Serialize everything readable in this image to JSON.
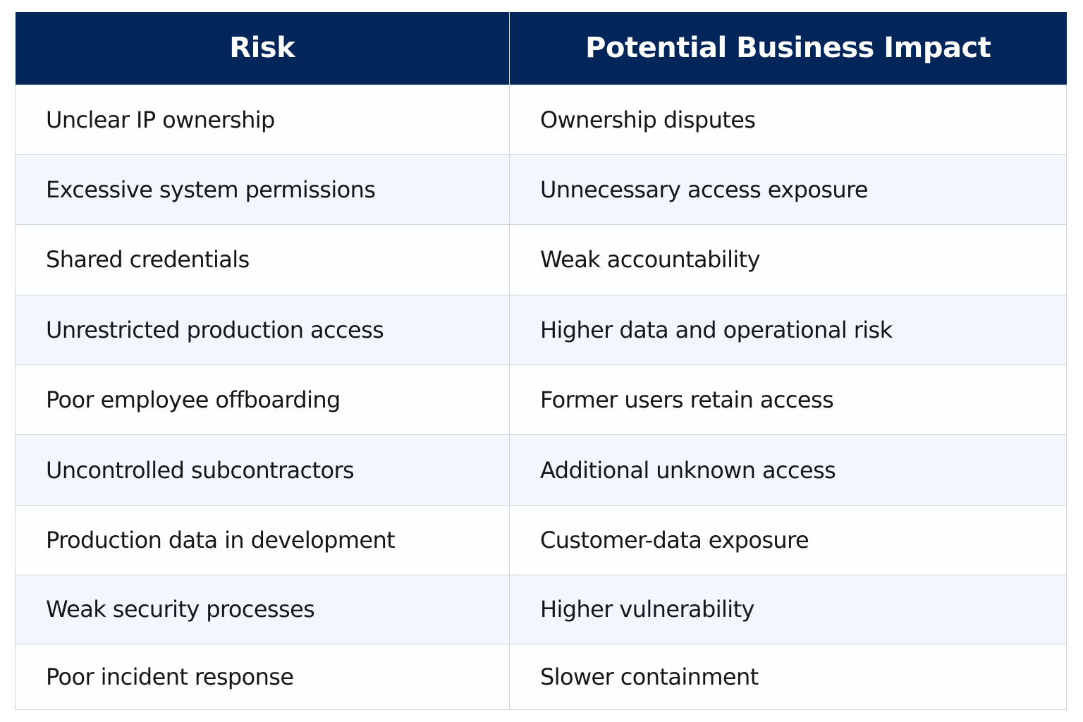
{
  "table": {
    "headers": [
      "Risk",
      "Potential Business Impact"
    ],
    "rows": [
      [
        "Unclear IP ownership",
        "Ownership disputes"
      ],
      [
        "Excessive system permissions",
        "Unnecessary access exposure"
      ],
      [
        "Shared credentials",
        "Weak accountability"
      ],
      [
        "Unrestricted production access",
        "Higher data and operational risk"
      ],
      [
        "Poor employee offboarding",
        "Former users retain access"
      ],
      [
        "Uncontrolled subcontractors",
        "Additional unknown access"
      ],
      [
        "Production data in development",
        "Customer-data exposure"
      ],
      [
        "Weak security processes",
        "Higher vulnerability"
      ],
      [
        "Poor incident response",
        "Slower containment"
      ]
    ]
  },
  "colors": {
    "header_background": "#03265a",
    "header_text": "#ffffff",
    "row_alt_background": "#f3f7fd",
    "grid_line": "#cfd4db"
  }
}
